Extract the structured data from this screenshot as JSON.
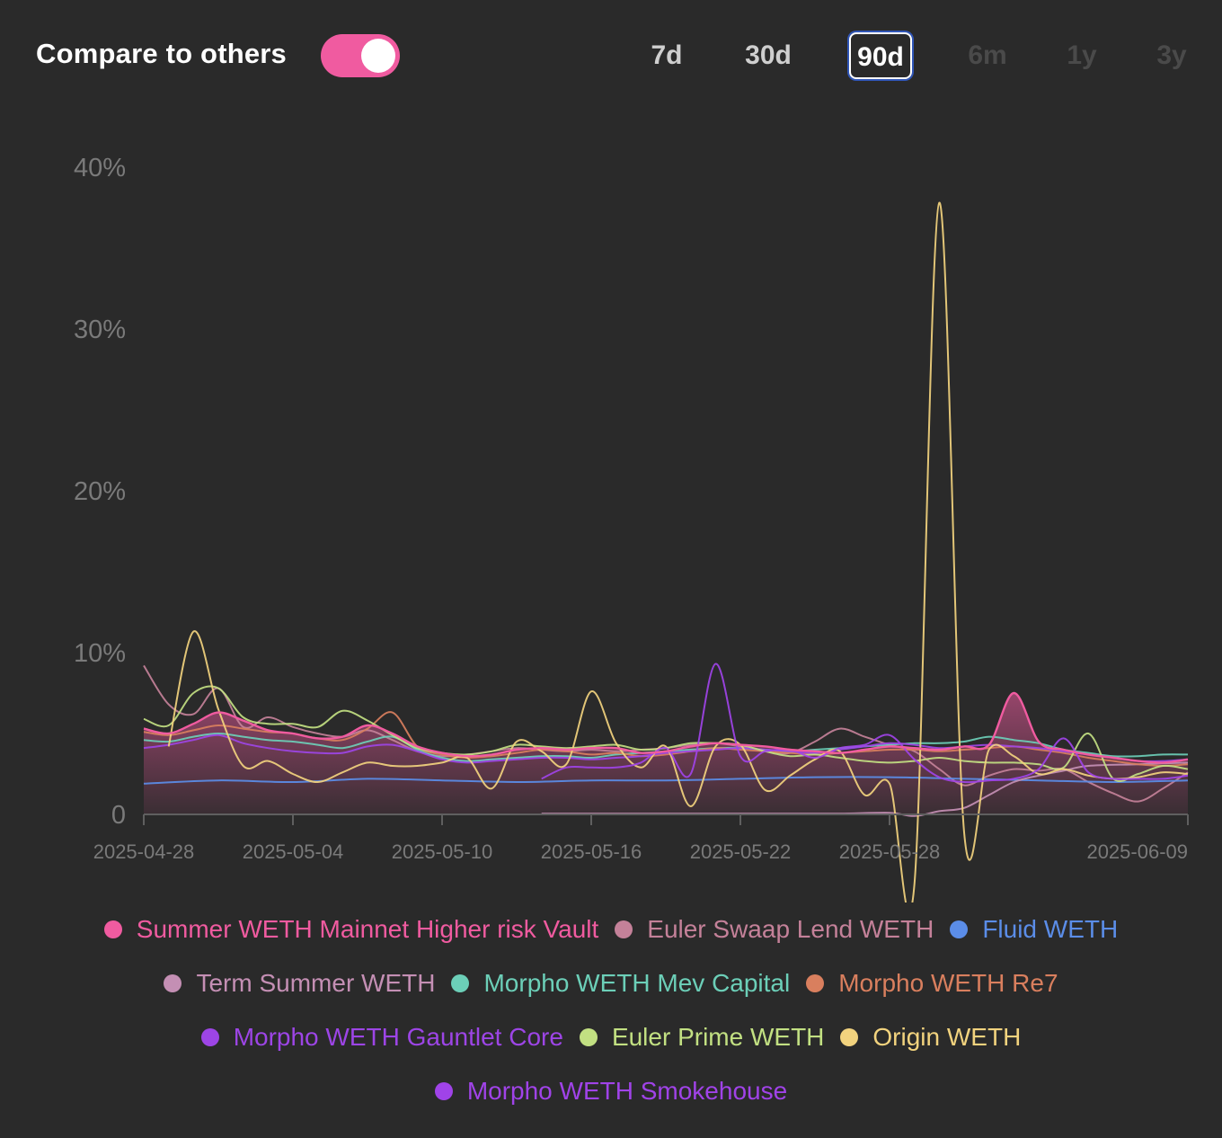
{
  "header": {
    "compare_label": "Compare to others",
    "compare_enabled": true,
    "ranges": [
      {
        "label": "7d",
        "state": "enabled"
      },
      {
        "label": "30d",
        "state": "enabled"
      },
      {
        "label": "90d",
        "state": "active"
      },
      {
        "label": "6m",
        "state": "disabled"
      },
      {
        "label": "1y",
        "state": "disabled"
      },
      {
        "label": "3y",
        "state": "disabled"
      }
    ]
  },
  "chart_data": {
    "type": "line",
    "title": "",
    "xlabel": "",
    "ylabel": "",
    "ylim": [
      0,
      40
    ],
    "yticks": [
      {
        "value": 0,
        "label": "0"
      },
      {
        "value": 10,
        "label": "10%"
      },
      {
        "value": 20,
        "label": "20%"
      },
      {
        "value": 30,
        "label": "30%"
      },
      {
        "value": 40,
        "label": "40%"
      }
    ],
    "xlim": [
      0,
      42
    ],
    "xticks": [
      {
        "value": 0,
        "label": "2025-04-28"
      },
      {
        "value": 6,
        "label": "2025-05-04"
      },
      {
        "value": 12,
        "label": "2025-05-10"
      },
      {
        "value": 18,
        "label": "2025-05-16"
      },
      {
        "value": 24,
        "label": "2025-05-22"
      },
      {
        "value": 30,
        "label": "2025-05-28"
      },
      {
        "value": 42,
        "label": "2025-06-09"
      }
    ],
    "x_unit": "days since 2025-04-28",
    "series": [
      {
        "name": "Summer WETH Mainnet Higher risk Vault",
        "color": "#f05ba0",
        "area": true,
        "primary": true,
        "legend_row": 0,
        "x": [
          0,
          1,
          2,
          3,
          4,
          5,
          6,
          7,
          8,
          9,
          10,
          11,
          12,
          13,
          14,
          15,
          16,
          17,
          18,
          19,
          20,
          21,
          22,
          23,
          24,
          25,
          26,
          27,
          28,
          29,
          30,
          31,
          32,
          33,
          34,
          35,
          36,
          37,
          38,
          39,
          40,
          41,
          42
        ],
        "values": [
          5.3,
          5.0,
          5.6,
          6.3,
          5.8,
          5.2,
          5.0,
          4.7,
          4.8,
          5.5,
          5.0,
          4.2,
          3.8,
          3.6,
          3.7,
          4.0,
          4.1,
          4.0,
          4.1,
          4.1,
          3.8,
          3.9,
          4.2,
          4.4,
          4.3,
          4.2,
          4.0,
          3.9,
          3.8,
          4.0,
          4.2,
          4.1,
          4.0,
          4.2,
          4.3,
          7.5,
          4.5,
          4.0,
          3.7,
          3.5,
          3.3,
          3.2,
          3.4
        ]
      },
      {
        "name": "Euler Swaap Lend WETH",
        "color": "#c48199",
        "area": false,
        "legend_row": 0,
        "x": [
          0,
          1,
          2,
          3,
          4,
          5,
          6,
          7,
          8,
          9,
          10,
          11,
          12,
          13,
          14,
          15,
          16,
          17,
          18,
          19,
          20,
          21,
          22,
          23,
          24,
          25,
          26,
          27,
          28,
          29,
          30,
          31,
          32,
          33,
          34,
          35,
          36,
          37,
          38,
          39,
          40,
          41,
          42
        ],
        "values": [
          9.2,
          6.8,
          6.2,
          7.8,
          5.4,
          6.0,
          5.4,
          5.0,
          4.8,
          5.2,
          4.6,
          3.9,
          3.6,
          3.7,
          3.9,
          4.1,
          4.0,
          3.9,
          4.0,
          3.9,
          4.0,
          4.1,
          4.3,
          4.4,
          4.2,
          3.9,
          3.8,
          4.5,
          5.3,
          4.8,
          4.3,
          3.9,
          2.8,
          1.8,
          2.4,
          2.8,
          2.7,
          2.8,
          2.0,
          1.3,
          0.8,
          1.6,
          2.6
        ]
      },
      {
        "name": "Fluid WETH",
        "color": "#5b8de8",
        "area": false,
        "legend_row": 0,
        "x": [
          0,
          3,
          6,
          9,
          12,
          15,
          18,
          21,
          24,
          27,
          30,
          33,
          36,
          39,
          42
        ],
        "values": [
          1.9,
          2.1,
          2.0,
          2.2,
          2.1,
          2.0,
          2.1,
          2.1,
          2.2,
          2.3,
          2.3,
          2.2,
          2.1,
          2.0,
          2.1
        ]
      },
      {
        "name": "Term Summer WETH",
        "color": "#c48fb4",
        "area": false,
        "legend_row": 1,
        "x": [
          16,
          18,
          20,
          22,
          24,
          26,
          28,
          30,
          31,
          32,
          33,
          34,
          35,
          36,
          37,
          38,
          40,
          42
        ],
        "values": [
          0.05,
          0.05,
          0.05,
          0.05,
          0.05,
          0.05,
          0.05,
          0.1,
          -0.1,
          0.2,
          0.4,
          1.2,
          2.0,
          2.4,
          2.7,
          3.0,
          3.1,
          3.2
        ]
      },
      {
        "name": "Morpho WETH Mev Capital",
        "color": "#6ccfb8",
        "area": false,
        "legend_row": 1,
        "x": [
          0,
          1,
          2,
          3,
          4,
          5,
          6,
          7,
          8,
          9,
          10,
          11,
          12,
          13,
          14,
          15,
          16,
          17,
          18,
          19,
          20,
          21,
          22,
          23,
          24,
          25,
          26,
          27,
          28,
          29,
          30,
          31,
          32,
          33,
          34,
          35,
          36,
          37,
          38,
          39,
          40,
          41,
          42
        ],
        "values": [
          4.6,
          4.5,
          4.8,
          5.0,
          4.8,
          4.6,
          4.5,
          4.3,
          4.1,
          4.5,
          4.8,
          4.0,
          3.5,
          3.3,
          3.4,
          3.5,
          3.6,
          3.6,
          3.5,
          3.7,
          3.8,
          3.9,
          4.0,
          4.1,
          4.1,
          4.0,
          3.9,
          4.0,
          4.1,
          4.2,
          4.3,
          4.4,
          4.4,
          4.5,
          4.8,
          4.6,
          4.4,
          4.0,
          3.8,
          3.6,
          3.6,
          3.7,
          3.7
        ]
      },
      {
        "name": "Morpho WETH Re7",
        "color": "#d97f5e",
        "area": false,
        "legend_row": 1,
        "x": [
          0,
          1,
          2,
          3,
          4,
          5,
          6,
          7,
          8,
          9,
          10,
          11,
          12,
          13,
          14,
          15,
          16,
          17,
          18,
          19,
          20,
          21,
          22,
          23,
          24,
          25,
          26,
          27,
          28,
          29,
          30,
          31,
          32,
          33,
          34,
          35,
          36,
          37,
          38,
          39,
          40,
          41,
          42
        ],
        "values": [
          5.1,
          4.9,
          5.2,
          5.5,
          5.3,
          5.1,
          5.0,
          4.7,
          4.6,
          5.3,
          6.3,
          4.2,
          3.7,
          3.5,
          3.6,
          3.8,
          4.0,
          3.9,
          3.7,
          3.8,
          3.6,
          3.7,
          3.9,
          4.1,
          4.0,
          3.9,
          3.8,
          3.7,
          3.8,
          3.9,
          4.0,
          4.0,
          3.9,
          4.0,
          4.1,
          4.2,
          4.0,
          3.8,
          3.5,
          3.3,
          3.1,
          3.0,
          3.1
        ]
      },
      {
        "name": "Morpho WETH Gauntlet Core",
        "color": "#9d45e6",
        "area": false,
        "legend_row": 2,
        "x": [
          0,
          1,
          2,
          3,
          4,
          5,
          6,
          7,
          8,
          9,
          10,
          11,
          12,
          13,
          14,
          15,
          16,
          17,
          18,
          19,
          20,
          21,
          22,
          23,
          24,
          25,
          26,
          27,
          28,
          29,
          30,
          31,
          32,
          33,
          34,
          35,
          36,
          37,
          38,
          39,
          40,
          41,
          42
        ],
        "values": [
          4.1,
          4.3,
          4.6,
          4.9,
          4.4,
          4.1,
          3.9,
          3.8,
          3.8,
          4.2,
          4.3,
          3.9,
          3.4,
          3.2,
          3.3,
          3.4,
          3.5,
          3.5,
          3.4,
          3.5,
          3.6,
          3.8,
          3.9,
          4.0,
          4.1,
          4.0,
          3.9,
          3.8,
          4.0,
          4.2,
          4.4,
          4.3,
          4.1,
          4.2,
          4.3,
          4.2,
          4.1,
          3.9,
          3.7,
          3.5,
          3.3,
          3.3,
          3.4
        ]
      },
      {
        "name": "Euler Prime WETH",
        "color": "#c2e082",
        "area": false,
        "legend_row": 2,
        "x": [
          0,
          1,
          2,
          3,
          4,
          5,
          6,
          7,
          8,
          9,
          10,
          11,
          12,
          13,
          14,
          15,
          16,
          17,
          18,
          19,
          20,
          21,
          22,
          23,
          24,
          25,
          26,
          27,
          28,
          29,
          30,
          31,
          32,
          33,
          34,
          35,
          36,
          37,
          38,
          39,
          40,
          41,
          42
        ],
        "values": [
          5.9,
          5.5,
          7.5,
          7.8,
          6.0,
          5.6,
          5.6,
          5.4,
          6.4,
          5.8,
          4.9,
          4.1,
          3.8,
          3.7,
          3.9,
          4.3,
          4.2,
          4.1,
          4.2,
          4.3,
          4.0,
          4.1,
          4.4,
          4.4,
          4.3,
          3.9,
          3.6,
          3.7,
          3.5,
          3.3,
          3.2,
          3.3,
          3.5,
          3.3,
          3.2,
          3.2,
          3.1,
          2.9,
          5.0,
          2.2,
          2.5,
          3.0,
          2.8
        ]
      },
      {
        "name": "Origin WETH",
        "color": "#f2d37e",
        "area": false,
        "legend_row": 2,
        "x": [
          1,
          2,
          3,
          4,
          5,
          6,
          7,
          8,
          9,
          10,
          11,
          12,
          13,
          14,
          15,
          16,
          17,
          18,
          19,
          20,
          21,
          22,
          23,
          24,
          25,
          26,
          27,
          28,
          29,
          30,
          31,
          32,
          33,
          34,
          35,
          36,
          37,
          38,
          39,
          40,
          41,
          42
        ],
        "values": [
          4.2,
          11.3,
          6.5,
          3.0,
          3.3,
          2.5,
          2.0,
          2.6,
          3.2,
          3.0,
          3.0,
          3.2,
          3.5,
          1.6,
          4.5,
          3.9,
          3.1,
          7.6,
          4.4,
          2.9,
          4.2,
          0.5,
          4.2,
          4.3,
          1.5,
          2.4,
          3.4,
          3.9,
          1.2,
          1.9,
          -4.3,
          37.8,
          -1.1,
          4.0,
          3.6,
          2.5,
          2.8,
          2.4,
          2.2,
          2.3,
          2.6,
          2.5
        ]
      },
      {
        "name": "Morpho WETH Smokehouse",
        "color": "#a043e8",
        "area": false,
        "legend_row": 3,
        "x": [
          16,
          17,
          18,
          19,
          20,
          21,
          22,
          23,
          24,
          25,
          26,
          27,
          28,
          29,
          30,
          31,
          32,
          33,
          34,
          35,
          36,
          37,
          38,
          39,
          40,
          41,
          42
        ],
        "values": [
          2.2,
          2.9,
          2.9,
          2.9,
          3.2,
          4.1,
          2.5,
          9.3,
          3.6,
          3.9,
          4.0,
          3.5,
          4.1,
          4.3,
          4.9,
          3.4,
          2.3,
          2.0,
          2.1,
          2.2,
          2.8,
          4.7,
          2.6,
          2.2,
          2.2,
          2.2,
          2.4
        ]
      }
    ]
  }
}
